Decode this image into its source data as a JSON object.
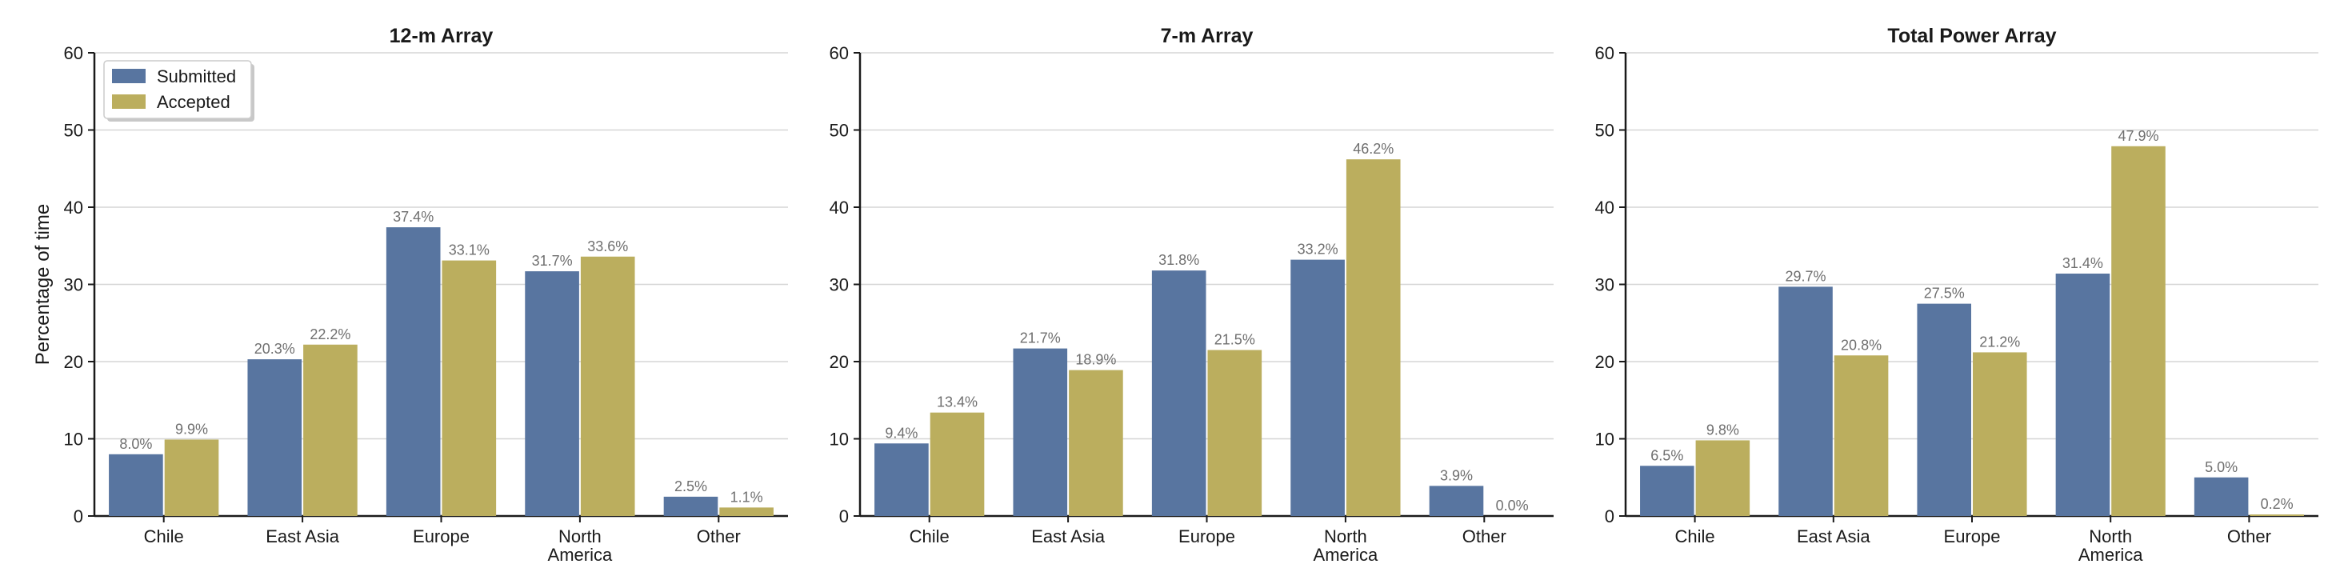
{
  "chart_data": [
    {
      "type": "bar",
      "title": "12-m Array",
      "ylabel": "Percentage of time",
      "ylim": [
        0,
        60
      ],
      "yticks": [
        "0",
        "10",
        "20",
        "30",
        "40",
        "50",
        "60"
      ],
      "categories": [
        [
          "Chile"
        ],
        [
          "East Asia"
        ],
        [
          "Europe"
        ],
        [
          "North",
          "America"
        ],
        [
          "Other"
        ]
      ],
      "series": [
        {
          "name": "Submitted",
          "color": "#5875a0",
          "values": [
            8.0,
            20.3,
            37.4,
            31.7,
            2.5
          ],
          "labels": [
            "8.0%",
            "20.3%",
            "37.4%",
            "31.7%",
            "2.5%"
          ]
        },
        {
          "name": "Accepted",
          "color": "#bbae5e",
          "values": [
            9.9,
            22.2,
            33.1,
            33.6,
            1.1
          ],
          "labels": [
            "9.9%",
            "22.2%",
            "33.1%",
            "33.6%",
            "1.1%"
          ]
        }
      ],
      "legend": "top-left",
      "grid": "horizontal"
    },
    {
      "type": "bar",
      "title": "7-m Array",
      "ylabel": "",
      "ylim": [
        0,
        60
      ],
      "yticks": [
        "0",
        "10",
        "20",
        "30",
        "40",
        "50",
        "60"
      ],
      "categories": [
        [
          "Chile"
        ],
        [
          "East Asia"
        ],
        [
          "Europe"
        ],
        [
          "North",
          "America"
        ],
        [
          "Other"
        ]
      ],
      "series": [
        {
          "name": "Submitted",
          "color": "#5875a0",
          "values": [
            9.4,
            21.7,
            31.8,
            33.2,
            3.9
          ],
          "labels": [
            "9.4%",
            "21.7%",
            "31.8%",
            "33.2%",
            "3.9%"
          ]
        },
        {
          "name": "Accepted",
          "color": "#bbae5e",
          "values": [
            13.4,
            18.9,
            21.5,
            46.2,
            0.0
          ],
          "labels": [
            "13.4%",
            "18.9%",
            "21.5%",
            "46.2%",
            "0.0%"
          ]
        }
      ],
      "legend": "",
      "grid": "horizontal"
    },
    {
      "type": "bar",
      "title": "Total Power Array",
      "ylabel": "",
      "ylim": [
        0,
        60
      ],
      "yticks": [
        "0",
        "10",
        "20",
        "30",
        "40",
        "50",
        "60"
      ],
      "categories": [
        [
          "Chile"
        ],
        [
          "East Asia"
        ],
        [
          "Europe"
        ],
        [
          "North",
          "America"
        ],
        [
          "Other"
        ]
      ],
      "series": [
        {
          "name": "Submitted",
          "color": "#5875a0",
          "values": [
            6.5,
            29.7,
            27.5,
            31.4,
            5.0
          ],
          "labels": [
            "6.5%",
            "29.7%",
            "27.5%",
            "31.4%",
            "5.0%"
          ]
        },
        {
          "name": "Accepted",
          "color": "#bbae5e",
          "values": [
            9.8,
            20.8,
            21.2,
            47.9,
            0.2
          ],
          "labels": [
            "9.8%",
            "20.8%",
            "21.2%",
            "47.9%",
            "0.2%"
          ]
        }
      ],
      "legend": "",
      "grid": "horizontal"
    }
  ]
}
